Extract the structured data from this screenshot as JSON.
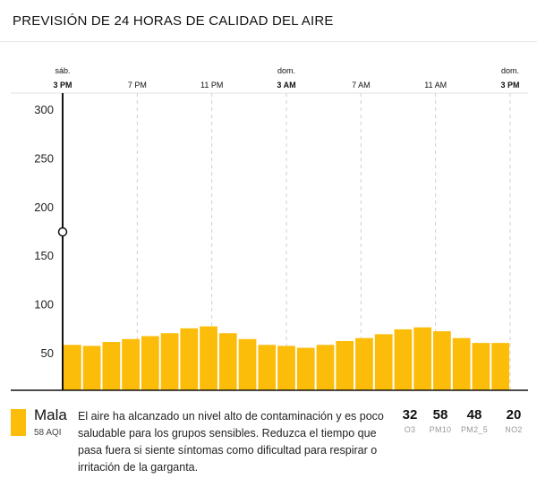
{
  "header": {
    "title": "PREVISIÓN DE 24 HORAS DE CALIDAD DEL AIRE"
  },
  "chart_data": {
    "type": "bar",
    "ylim": [
      0,
      320
    ],
    "y_ticks": [
      "300",
      "250",
      "200",
      "150",
      "100",
      "50"
    ],
    "y_tick_values": [
      300,
      250,
      200,
      150,
      100,
      50
    ],
    "x_ticks": [
      {
        "day": "sáb.",
        "time": "3 PM",
        "hour": 0,
        "bold": true
      },
      {
        "day": "",
        "time": "7 PM",
        "hour": 4,
        "bold": false
      },
      {
        "day": "",
        "time": "11 PM",
        "hour": 8,
        "bold": false
      },
      {
        "day": "dom.",
        "time": "3 AM",
        "hour": 12,
        "bold": true
      },
      {
        "day": "",
        "time": "7 AM",
        "hour": 16,
        "bold": false
      },
      {
        "day": "",
        "time": "11 AM",
        "hour": 20,
        "bold": false
      },
      {
        "day": "dom.",
        "time": "3 PM",
        "hour": 24,
        "bold": true
      }
    ],
    "values": [
      58,
      57,
      61,
      64,
      67,
      70,
      75,
      77,
      70,
      64,
      58,
      57,
      55,
      58,
      62,
      65,
      69,
      74,
      76,
      72,
      65,
      60,
      60
    ],
    "current_marker_value": 174,
    "bar_color": "#fbbc0a"
  },
  "summary": {
    "level": "Mala",
    "aqi": "58 AQI",
    "description": "El aire ha alcanzado un nivel alto de contaminación y es poco saludable para los grupos sensibles. Reduzca el tiempo que pasa fuera si siente síntomas como dificultad para respirar o irritación de la garganta.",
    "level_color": "#fbbc0a"
  },
  "pollutants": [
    {
      "value": "32",
      "name": "O3"
    },
    {
      "value": "58",
      "name": "PM10"
    },
    {
      "value": "48",
      "name": "PM2_5"
    },
    {
      "value": "20",
      "name": "NO2"
    }
  ]
}
